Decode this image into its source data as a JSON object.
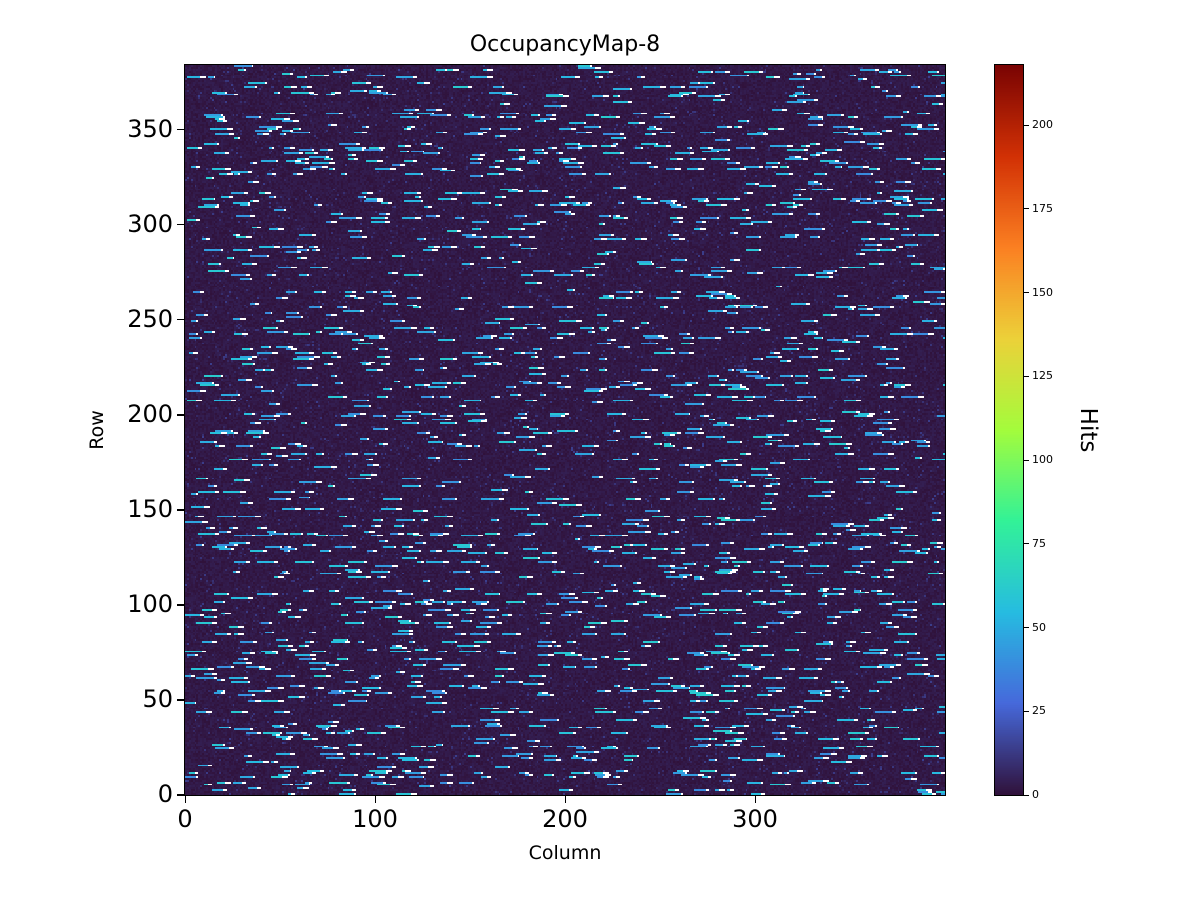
{
  "chart_data": {
    "type": "heatmap",
    "title": "OccupancyMap-8",
    "xlabel": "Column",
    "ylabel": "Row",
    "x_range": [
      0,
      400
    ],
    "y_range": [
      0,
      384
    ],
    "x_ticks": [
      0,
      100,
      200,
      300
    ],
    "y_ticks": [
      0,
      50,
      100,
      150,
      200,
      250,
      300,
      350
    ],
    "grid": false,
    "background_color": "#ffffff",
    "colorbar": {
      "label": "Hits",
      "ticks": [
        0,
        25,
        50,
        75,
        100,
        125,
        150,
        175,
        200
      ],
      "vmin": 0,
      "vmax": 218,
      "colormap": "turbo",
      "colormap_stops": [
        [
          0.0,
          "#30123b"
        ],
        [
          0.125,
          "#4669db"
        ],
        [
          0.25,
          "#26bce1"
        ],
        [
          0.375,
          "#32f298"
        ],
        [
          0.5,
          "#a4fc3c"
        ],
        [
          0.625,
          "#ecd139"
        ],
        [
          0.75,
          "#fb8022"
        ],
        [
          0.875,
          "#d23105"
        ],
        [
          1.0,
          "#7a0403"
        ]
      ]
    },
    "pattern": {
      "description": "Mostly near-zero (dark) occupancy with sparse short horizontal light-blue dashes of roughly 40-60 hits scattered over the rows",
      "background_value_range": [
        0,
        8
      ],
      "dash_value_range": [
        38,
        62
      ],
      "dash_length_range": [
        2,
        9
      ],
      "active_row_fraction": 0.42,
      "dash_start_prob_active": 0.028,
      "dash_start_prob_quiet": 0.004,
      "seed": 8
    }
  }
}
